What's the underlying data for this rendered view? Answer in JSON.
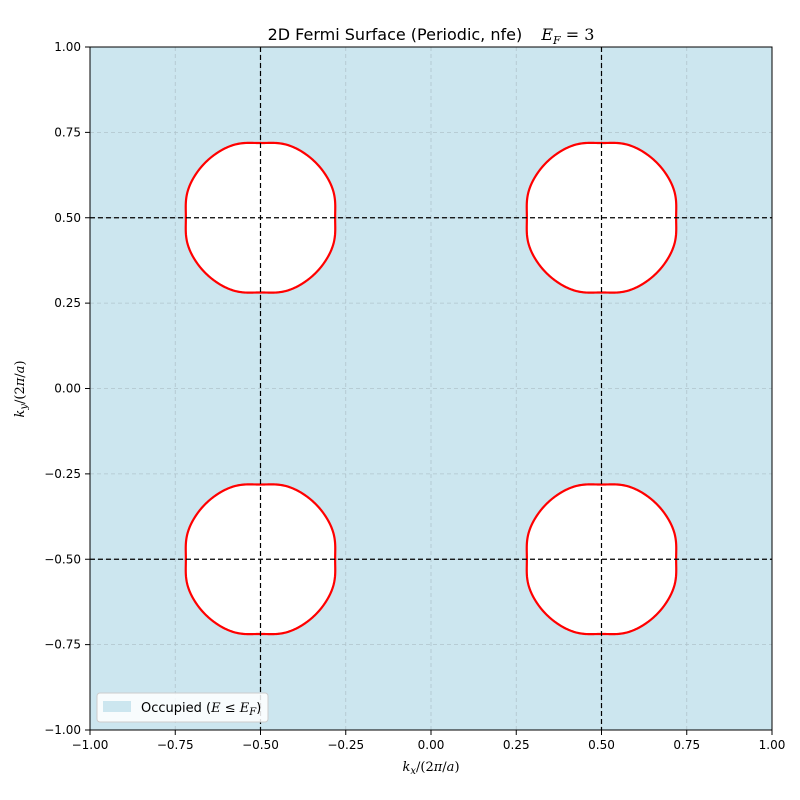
{
  "chart_data": {
    "type": "contour",
    "title": "2D Fermi Surface (Periodic, nfe)",
    "title_fermi": "E_F = 3",
    "xlabel": "k_x/(2π/a)",
    "ylabel": "k_y/(2π/a)",
    "xlim": [
      -1.0,
      1.0
    ],
    "ylim": [
      -1.0,
      1.0
    ],
    "xticks": [
      -1.0,
      -0.75,
      -0.5,
      -0.25,
      0.0,
      0.25,
      0.5,
      0.75,
      1.0
    ],
    "yticks": [
      -1.0,
      -0.75,
      -0.5,
      -0.25,
      0.0,
      0.25,
      0.5,
      0.75,
      1.0
    ],
    "xtick_labels": [
      "−1.00",
      "−0.75",
      "−0.50",
      "−0.25",
      "0.00",
      "0.25",
      "0.50",
      "0.75",
      "1.00"
    ],
    "ytick_labels": [
      "−1.00",
      "−0.75",
      "−0.50",
      "−0.25",
      "0.00",
      "0.25",
      "0.50",
      "0.75",
      "1.00"
    ],
    "grid": true,
    "brillouin_zone_lines": {
      "x": [
        -0.5,
        0.5
      ],
      "y": [
        -0.5,
        0.5
      ],
      "color": "#000000"
    },
    "occupied_color": "#cce6ef",
    "fermi_contour_color": "#ff0000",
    "pockets": [
      {
        "center": [
          -0.5,
          0.5
        ],
        "half_width": 0.228,
        "half_extent_diagonal": 0.165
      },
      {
        "center": [
          0.5,
          0.5
        ],
        "half_width": 0.228,
        "half_extent_diagonal": 0.165
      },
      {
        "center": [
          -0.5,
          -0.5
        ],
        "half_width": 0.228,
        "half_extent_diagonal": 0.165
      },
      {
        "center": [
          0.5,
          -0.5
        ],
        "half_width": 0.228,
        "half_extent_diagonal": 0.165
      }
    ],
    "legend": {
      "placement": "lower-left",
      "entries": [
        {
          "label": "Occupied (E ≤ E_F)",
          "color": "#cce6ef"
        }
      ]
    }
  }
}
